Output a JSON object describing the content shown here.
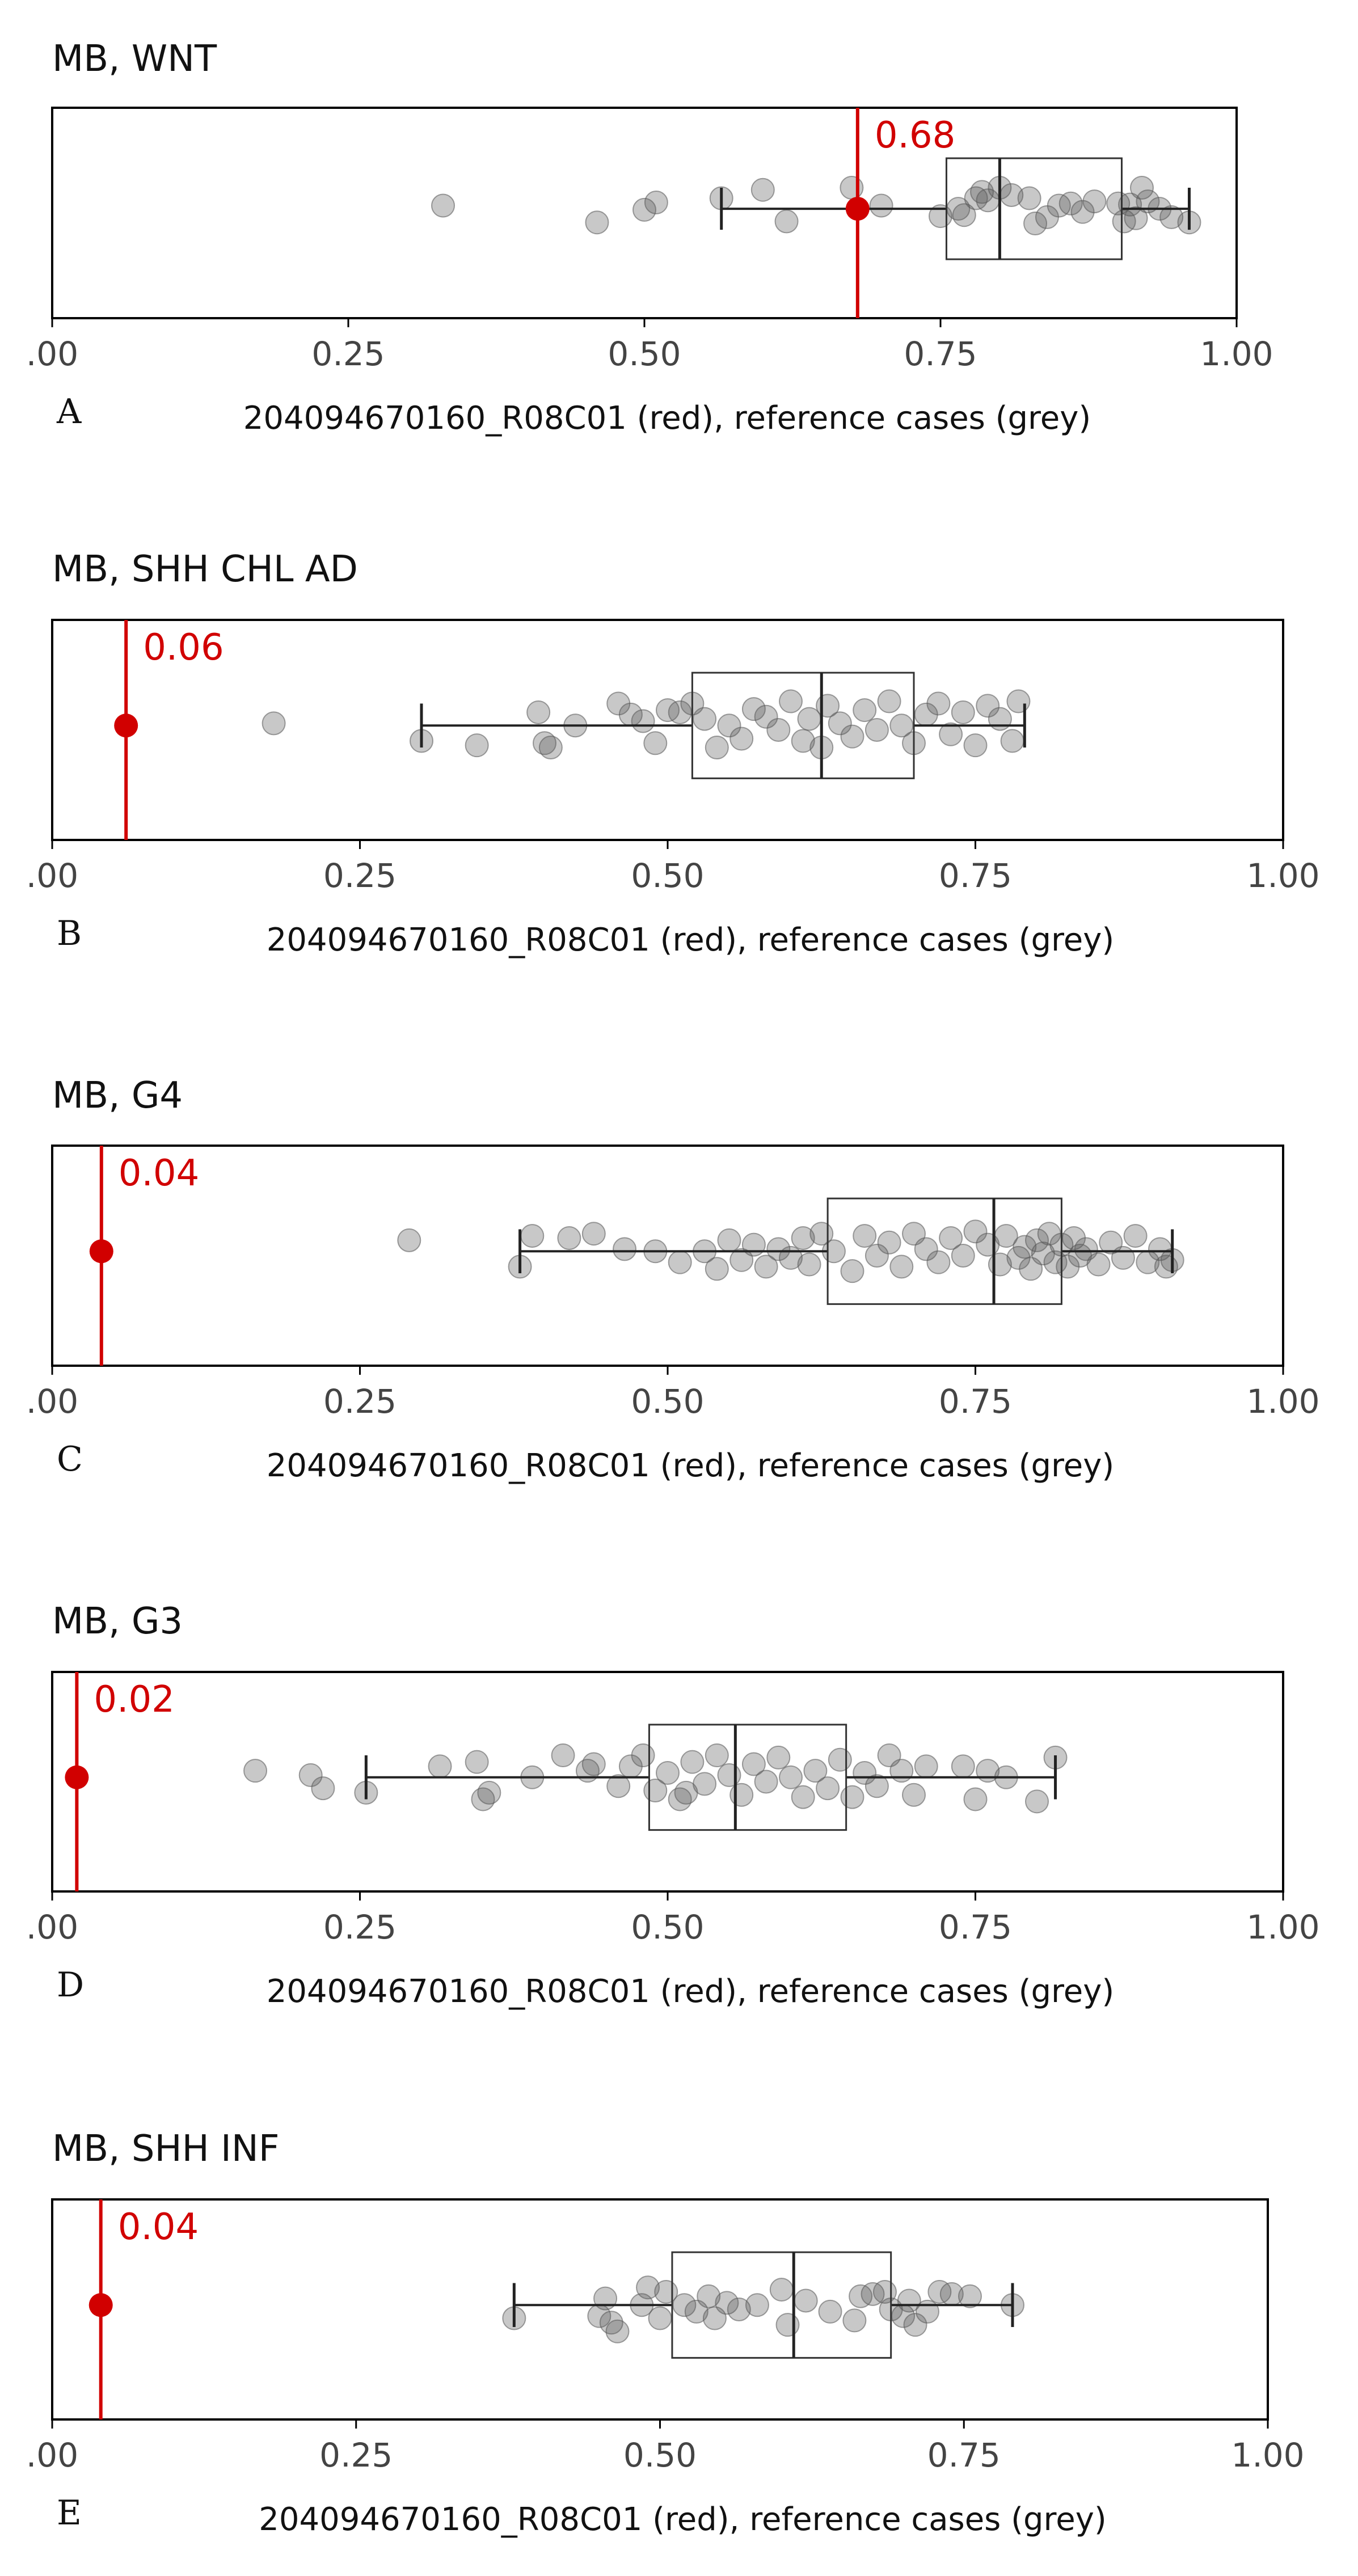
{
  "colors": {
    "sample": "#d10000",
    "reference": "#555555",
    "axis": "#000000"
  },
  "chart_data": [
    {
      "type": "scatter",
      "panel_letter": "A",
      "title": "MB, WNT",
      "xlabel": "204094670160_R08C01 (red), reference cases (grey)",
      "xlim": [
        0,
        1
      ],
      "xticks": [
        0,
        0.25,
        0.5,
        0.75,
        1
      ],
      "xtick_labels": [
        ".00",
        "0.25",
        "0.50",
        "0.75",
        "1.00"
      ],
      "sample": {
        "value": 0.68,
        "label": "0.68"
      },
      "box": {
        "whisker_low": 0.565,
        "q1": 0.755,
        "median": 0.8,
        "q3": 0.903,
        "whisker_high": 0.96
      },
      "points": [
        {
          "x": 0.33,
          "j": 0.03
        },
        {
          "x": 0.46,
          "j": -0.13
        },
        {
          "x": 0.5,
          "j": -0.01
        },
        {
          "x": 0.51,
          "j": 0.06
        },
        {
          "x": 0.565,
          "j": 0.1
        },
        {
          "x": 0.6,
          "j": 0.18
        },
        {
          "x": 0.62,
          "j": -0.12
        },
        {
          "x": 0.675,
          "j": 0.2
        },
        {
          "x": 0.7,
          "j": 0.03
        },
        {
          "x": 0.75,
          "j": -0.07
        },
        {
          "x": 0.765,
          "j": 0.0
        },
        {
          "x": 0.77,
          "j": -0.06
        },
        {
          "x": 0.78,
          "j": 0.1
        },
        {
          "x": 0.785,
          "j": 0.16
        },
        {
          "x": 0.79,
          "j": 0.08
        },
        {
          "x": 0.8,
          "j": 0.2
        },
        {
          "x": 0.81,
          "j": 0.13
        },
        {
          "x": 0.825,
          "j": 0.1
        },
        {
          "x": 0.83,
          "j": -0.14
        },
        {
          "x": 0.84,
          "j": -0.08
        },
        {
          "x": 0.85,
          "j": 0.03
        },
        {
          "x": 0.86,
          "j": 0.05
        },
        {
          "x": 0.87,
          "j": -0.03
        },
        {
          "x": 0.88,
          "j": 0.07
        },
        {
          "x": 0.9,
          "j": 0.05
        },
        {
          "x": 0.905,
          "j": -0.12
        },
        {
          "x": 0.91,
          "j": 0.04
        },
        {
          "x": 0.915,
          "j": -0.09
        },
        {
          "x": 0.92,
          "j": 0.2
        },
        {
          "x": 0.925,
          "j": 0.07
        },
        {
          "x": 0.935,
          "j": 0.0
        },
        {
          "x": 0.945,
          "j": -0.08
        },
        {
          "x": 0.96,
          "j": -0.13
        }
      ]
    },
    {
      "type": "scatter",
      "panel_letter": "B",
      "title": "MB, SHH CHL AD",
      "xlabel": "204094670160_R08C01 (red), reference cases (grey)",
      "xlim": [
        0,
        1
      ],
      "xticks": [
        0,
        0.25,
        0.5,
        0.75,
        1
      ],
      "xtick_labels": [
        ".00",
        "0.25",
        "0.50",
        "0.75",
        "1.00"
      ],
      "sample": {
        "value": 0.06,
        "label": "0.06"
      },
      "box": {
        "whisker_low": 0.3,
        "q1": 0.52,
        "median": 0.625,
        "q3": 0.7,
        "whisker_high": 0.79
      },
      "points": [
        {
          "x": 0.18,
          "j": 0.02
        },
        {
          "x": 0.3,
          "j": -0.14
        },
        {
          "x": 0.345,
          "j": -0.18
        },
        {
          "x": 0.395,
          "j": 0.12
        },
        {
          "x": 0.4,
          "j": -0.16
        },
        {
          "x": 0.405,
          "j": -0.2
        },
        {
          "x": 0.425,
          "j": 0.0
        },
        {
          "x": 0.46,
          "j": 0.2
        },
        {
          "x": 0.47,
          "j": 0.1
        },
        {
          "x": 0.48,
          "j": 0.04
        },
        {
          "x": 0.49,
          "j": -0.16
        },
        {
          "x": 0.5,
          "j": 0.14
        },
        {
          "x": 0.51,
          "j": 0.12
        },
        {
          "x": 0.52,
          "j": 0.2
        },
        {
          "x": 0.53,
          "j": 0.06
        },
        {
          "x": 0.54,
          "j": -0.2
        },
        {
          "x": 0.55,
          "j": 0.0
        },
        {
          "x": 0.56,
          "j": -0.12
        },
        {
          "x": 0.57,
          "j": 0.15
        },
        {
          "x": 0.58,
          "j": 0.08
        },
        {
          "x": 0.59,
          "j": -0.04
        },
        {
          "x": 0.6,
          "j": 0.22
        },
        {
          "x": 0.61,
          "j": -0.14
        },
        {
          "x": 0.615,
          "j": 0.06
        },
        {
          "x": 0.625,
          "j": -0.2
        },
        {
          "x": 0.63,
          "j": 0.18
        },
        {
          "x": 0.64,
          "j": 0.02
        },
        {
          "x": 0.65,
          "j": -0.1
        },
        {
          "x": 0.66,
          "j": 0.14
        },
        {
          "x": 0.67,
          "j": -0.04
        },
        {
          "x": 0.68,
          "j": 0.22
        },
        {
          "x": 0.69,
          "j": 0.0
        },
        {
          "x": 0.7,
          "j": -0.16
        },
        {
          "x": 0.71,
          "j": 0.1
        },
        {
          "x": 0.72,
          "j": 0.2
        },
        {
          "x": 0.73,
          "j": -0.08
        },
        {
          "x": 0.74,
          "j": 0.12
        },
        {
          "x": 0.75,
          "j": -0.18
        },
        {
          "x": 0.76,
          "j": 0.18
        },
        {
          "x": 0.77,
          "j": 0.06
        },
        {
          "x": 0.78,
          "j": -0.14
        },
        {
          "x": 0.785,
          "j": 0.22
        }
      ]
    },
    {
      "type": "scatter",
      "panel_letter": "C",
      "title": "MB, G4",
      "xlabel": "204094670160_R08C01 (red), reference cases (grey)",
      "xlim": [
        0,
        1
      ],
      "xticks": [
        0,
        0.25,
        0.5,
        0.75,
        1
      ],
      "xtick_labels": [
        ".00",
        "0.25",
        "0.50",
        "0.75",
        "1.00"
      ],
      "sample": {
        "value": 0.04,
        "label": "0.04"
      },
      "box": {
        "whisker_low": 0.38,
        "q1": 0.63,
        "median": 0.765,
        "q3": 0.82,
        "whisker_high": 0.91
      },
      "points": [
        {
          "x": 0.29,
          "j": 0.1
        },
        {
          "x": 0.38,
          "j": -0.14
        },
        {
          "x": 0.39,
          "j": 0.14
        },
        {
          "x": 0.42,
          "j": 0.12
        },
        {
          "x": 0.44,
          "j": 0.16
        },
        {
          "x": 0.465,
          "j": 0.02
        },
        {
          "x": 0.49,
          "j": 0.0
        },
        {
          "x": 0.51,
          "j": -0.1
        },
        {
          "x": 0.53,
          "j": 0.0
        },
        {
          "x": 0.54,
          "j": -0.16
        },
        {
          "x": 0.55,
          "j": 0.1
        },
        {
          "x": 0.56,
          "j": -0.08
        },
        {
          "x": 0.57,
          "j": 0.06
        },
        {
          "x": 0.58,
          "j": -0.14
        },
        {
          "x": 0.59,
          "j": 0.02
        },
        {
          "x": 0.6,
          "j": -0.06
        },
        {
          "x": 0.61,
          "j": 0.12
        },
        {
          "x": 0.615,
          "j": -0.12
        },
        {
          "x": 0.625,
          "j": 0.16
        },
        {
          "x": 0.635,
          "j": 0.0
        },
        {
          "x": 0.65,
          "j": -0.18
        },
        {
          "x": 0.66,
          "j": 0.14
        },
        {
          "x": 0.67,
          "j": -0.04
        },
        {
          "x": 0.68,
          "j": 0.08
        },
        {
          "x": 0.69,
          "j": -0.14
        },
        {
          "x": 0.7,
          "j": 0.16
        },
        {
          "x": 0.71,
          "j": 0.02
        },
        {
          "x": 0.72,
          "j": -0.1
        },
        {
          "x": 0.73,
          "j": 0.12
        },
        {
          "x": 0.74,
          "j": -0.04
        },
        {
          "x": 0.75,
          "j": 0.18
        },
        {
          "x": 0.76,
          "j": 0.06
        },
        {
          "x": 0.77,
          "j": -0.12
        },
        {
          "x": 0.775,
          "j": 0.14
        },
        {
          "x": 0.785,
          "j": -0.06
        },
        {
          "x": 0.79,
          "j": 0.04
        },
        {
          "x": 0.795,
          "j": -0.16
        },
        {
          "x": 0.8,
          "j": 0.1
        },
        {
          "x": 0.805,
          "j": -0.02
        },
        {
          "x": 0.81,
          "j": 0.16
        },
        {
          "x": 0.815,
          "j": -0.1
        },
        {
          "x": 0.82,
          "j": 0.06
        },
        {
          "x": 0.825,
          "j": -0.14
        },
        {
          "x": 0.83,
          "j": 0.12
        },
        {
          "x": 0.835,
          "j": -0.04
        },
        {
          "x": 0.84,
          "j": 0.02
        },
        {
          "x": 0.85,
          "j": -0.12
        },
        {
          "x": 0.86,
          "j": 0.08
        },
        {
          "x": 0.87,
          "j": -0.06
        },
        {
          "x": 0.88,
          "j": 0.14
        },
        {
          "x": 0.89,
          "j": -0.1
        },
        {
          "x": 0.9,
          "j": 0.02
        },
        {
          "x": 0.905,
          "j": -0.14
        },
        {
          "x": 0.91,
          "j": -0.08
        }
      ]
    },
    {
      "type": "scatter",
      "panel_letter": "D",
      "title": "MB, G3",
      "xlabel": "204094670160_R08C01 (red), reference cases (grey)",
      "xlim": [
        0,
        1
      ],
      "xticks": [
        0,
        0.25,
        0.5,
        0.75,
        1
      ],
      "xtick_labels": [
        ".00",
        "0.25",
        "0.50",
        "0.75",
        "1.00"
      ],
      "sample": {
        "value": 0.02,
        "label": "0.02"
      },
      "box": {
        "whisker_low": 0.255,
        "q1": 0.485,
        "median": 0.555,
        "q3": 0.645,
        "whisker_high": 0.815
      },
      "points": [
        {
          "x": 0.165,
          "j": 0.06
        },
        {
          "x": 0.21,
          "j": 0.02
        },
        {
          "x": 0.22,
          "j": -0.1
        },
        {
          "x": 0.255,
          "j": -0.14
        },
        {
          "x": 0.315,
          "j": 0.1
        },
        {
          "x": 0.345,
          "j": 0.14
        },
        {
          "x": 0.35,
          "j": -0.2
        },
        {
          "x": 0.355,
          "j": -0.14
        },
        {
          "x": 0.39,
          "j": 0.0
        },
        {
          "x": 0.415,
          "j": 0.2
        },
        {
          "x": 0.435,
          "j": 0.06
        },
        {
          "x": 0.44,
          "j": 0.12
        },
        {
          "x": 0.46,
          "j": -0.08
        },
        {
          "x": 0.47,
          "j": 0.1
        },
        {
          "x": 0.48,
          "j": 0.2
        },
        {
          "x": 0.49,
          "j": -0.12
        },
        {
          "x": 0.5,
          "j": 0.04
        },
        {
          "x": 0.51,
          "j": -0.2
        },
        {
          "x": 0.515,
          "j": -0.14
        },
        {
          "x": 0.52,
          "j": 0.14
        },
        {
          "x": 0.53,
          "j": -0.06
        },
        {
          "x": 0.54,
          "j": 0.2
        },
        {
          "x": 0.55,
          "j": 0.02
        },
        {
          "x": 0.56,
          "j": -0.16
        },
        {
          "x": 0.57,
          "j": 0.12
        },
        {
          "x": 0.58,
          "j": -0.04
        },
        {
          "x": 0.59,
          "j": 0.18
        },
        {
          "x": 0.6,
          "j": 0.0
        },
        {
          "x": 0.61,
          "j": -0.18
        },
        {
          "x": 0.62,
          "j": 0.06
        },
        {
          "x": 0.63,
          "j": -0.1
        },
        {
          "x": 0.64,
          "j": 0.16
        },
        {
          "x": 0.65,
          "j": -0.18
        },
        {
          "x": 0.66,
          "j": 0.04
        },
        {
          "x": 0.67,
          "j": -0.08
        },
        {
          "x": 0.68,
          "j": 0.2
        },
        {
          "x": 0.69,
          "j": 0.06
        },
        {
          "x": 0.7,
          "j": -0.16
        },
        {
          "x": 0.71,
          "j": 0.1
        },
        {
          "x": 0.74,
          "j": 0.1
        },
        {
          "x": 0.75,
          "j": -0.2
        },
        {
          "x": 0.76,
          "j": 0.06
        },
        {
          "x": 0.775,
          "j": 0.0
        },
        {
          "x": 0.8,
          "j": -0.22
        },
        {
          "x": 0.815,
          "j": 0.18
        }
      ]
    },
    {
      "type": "scatter",
      "panel_letter": "E",
      "title": "MB, SHH INF",
      "xlabel": "204094670160_R08C01 (red), reference cases (grey)",
      "xlim": [
        0,
        1
      ],
      "xticks": [
        0,
        0.25,
        0.5,
        0.75,
        1
      ],
      "xtick_labels": [
        ".00",
        "0.25",
        "0.50",
        "0.75",
        "1.00"
      ],
      "sample": {
        "value": 0.04,
        "label": "0.04"
      },
      "box": {
        "whisker_low": 0.38,
        "q1": 0.51,
        "median": 0.61,
        "q3": 0.69,
        "whisker_high": 0.79
      },
      "points": [
        {
          "x": 0.38,
          "j": -0.12
        },
        {
          "x": 0.45,
          "j": -0.1
        },
        {
          "x": 0.455,
          "j": 0.06
        },
        {
          "x": 0.46,
          "j": -0.16
        },
        {
          "x": 0.465,
          "j": -0.24
        },
        {
          "x": 0.485,
          "j": 0.0
        },
        {
          "x": 0.49,
          "j": 0.16
        },
        {
          "x": 0.5,
          "j": -0.12
        },
        {
          "x": 0.505,
          "j": 0.12
        },
        {
          "x": 0.52,
          "j": 0.0
        },
        {
          "x": 0.53,
          "j": -0.06
        },
        {
          "x": 0.54,
          "j": 0.08
        },
        {
          "x": 0.545,
          "j": -0.12
        },
        {
          "x": 0.555,
          "j": 0.02
        },
        {
          "x": 0.565,
          "j": -0.04
        },
        {
          "x": 0.58,
          "j": 0.0
        },
        {
          "x": 0.6,
          "j": 0.14
        },
        {
          "x": 0.605,
          "j": -0.18
        },
        {
          "x": 0.62,
          "j": 0.04
        },
        {
          "x": 0.64,
          "j": -0.06
        },
        {
          "x": 0.66,
          "j": -0.14
        },
        {
          "x": 0.665,
          "j": 0.08
        },
        {
          "x": 0.675,
          "j": 0.1
        },
        {
          "x": 0.685,
          "j": 0.12
        },
        {
          "x": 0.69,
          "j": -0.04
        },
        {
          "x": 0.7,
          "j": -0.1
        },
        {
          "x": 0.705,
          "j": 0.04
        },
        {
          "x": 0.71,
          "j": -0.18
        },
        {
          "x": 0.72,
          "j": -0.06
        },
        {
          "x": 0.73,
          "j": 0.12
        },
        {
          "x": 0.74,
          "j": 0.1
        },
        {
          "x": 0.755,
          "j": 0.08
        },
        {
          "x": 0.79,
          "j": 0.0
        }
      ]
    }
  ]
}
